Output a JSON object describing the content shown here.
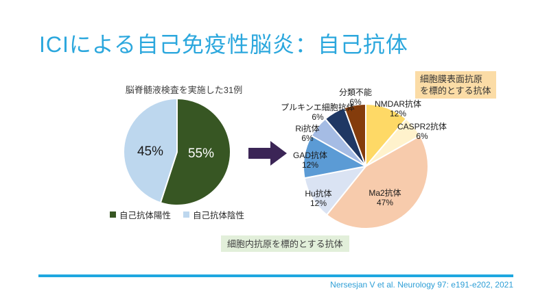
{
  "slide": {
    "title": "ICIによる自己免疫性脳炎：自己抗体",
    "title_color": "#2ba7dd",
    "citation": "Nersesjan V et al. Neurology 97: e191-e202, 2021",
    "accent_line_color": "#1ea7e0",
    "background": "#ffffff"
  },
  "arrow": {
    "color": "#3b2556",
    "direction": "right"
  },
  "annotations": {
    "membrane_box": {
      "line1": "細胞膜表面抗原",
      "line2": "を標的とする抗体",
      "bg_color": "#fbdca6"
    },
    "intracellular_box": {
      "text": "細胞内抗原を標的とする抗体",
      "bg_color": "#e2efda"
    }
  },
  "chart_data": [
    {
      "type": "pie",
      "title": "脳脊髄液検査を実施した31例",
      "categories": [
        "自己抗体陽性",
        "自己抗体陰性"
      ],
      "values": [
        55,
        45
      ],
      "value_labels": [
        "55%",
        "45%"
      ],
      "colors": [
        "#375623",
        "#bdd7ee"
      ],
      "start_angle_deg": 0,
      "direction": "clockwise",
      "legend_position": "bottom"
    },
    {
      "type": "pie",
      "title": "",
      "categories": [
        "NMDAR抗体",
        "CASPR2抗体",
        "Ma2抗体",
        "Hu抗体",
        "GAD抗体",
        "Ri抗体",
        "プルキンエ細胞抗体",
        "分類不能"
      ],
      "values": [
        12,
        6,
        47,
        12,
        12,
        6,
        6,
        6
      ],
      "value_labels": [
        "12%",
        "6%",
        "47%",
        "12%",
        "12%",
        "6%",
        "6%",
        "6%"
      ],
      "colors": [
        "#fed966",
        "#fff2cc",
        "#f7cbac",
        "#dae3f3",
        "#5b9bd5",
        "#a5bce4",
        "#1f3864",
        "#843c0c"
      ],
      "start_angle_deg": 0,
      "direction": "clockwise",
      "legend_position": "none",
      "groups": {
        "membrane_surface_antigen": [
          "NMDAR抗体",
          "CASPR2抗体"
        ],
        "intracellular_antigen": [
          "Ma2抗体",
          "Hu抗体",
          "GAD抗体",
          "Ri抗体",
          "プルキンエ細胞抗体"
        ]
      }
    }
  ]
}
